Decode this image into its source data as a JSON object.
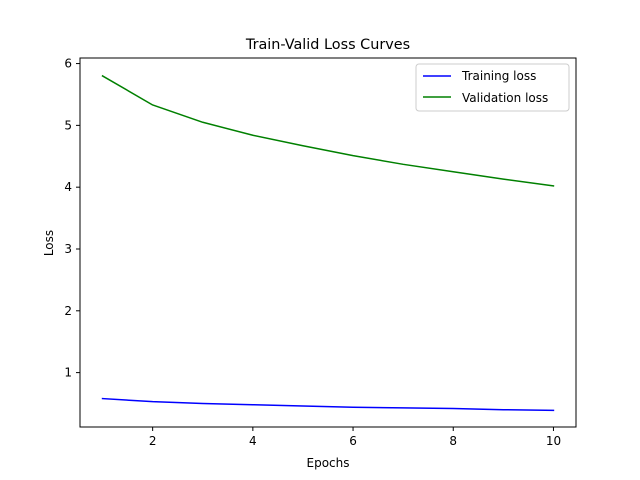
{
  "chart_data": {
    "type": "line",
    "title": "Train-Valid Loss Curves",
    "xlabel": "Epochs",
    "ylabel": "Loss",
    "xlim": [
      0.55,
      10.45
    ],
    "ylim": [
      0.12,
      6.09
    ],
    "xticks": [
      2,
      4,
      6,
      8,
      10
    ],
    "yticks": [
      1,
      2,
      3,
      4,
      5,
      6
    ],
    "grid": false,
    "legend_position": "upper right",
    "x": [
      1,
      2,
      3,
      4,
      5,
      6,
      7,
      8,
      9,
      10
    ],
    "series": [
      {
        "name": "Training loss",
        "color": "#0000ff",
        "values": [
          0.58,
          0.53,
          0.5,
          0.48,
          0.46,
          0.44,
          0.43,
          0.42,
          0.4,
          0.39
        ]
      },
      {
        "name": "Validation loss",
        "color": "#008000",
        "values": [
          5.8,
          5.33,
          5.05,
          4.84,
          4.67,
          4.51,
          4.37,
          4.25,
          4.13,
          4.02
        ]
      }
    ]
  }
}
